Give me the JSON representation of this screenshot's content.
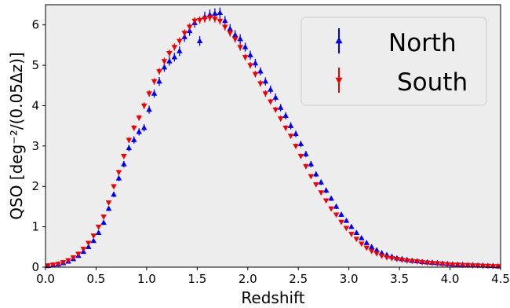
{
  "chart_data": {
    "type": "scatter",
    "xlabel": "Redshift",
    "ylabel": "QSO [deg⁻²/(0.05Δz)]",
    "xlim": [
      0.0,
      4.5
    ],
    "ylim": [
      0.0,
      6.5
    ],
    "xticks": [
      "0.0",
      "0.5",
      "1.0",
      "1.5",
      "2.0",
      "2.5",
      "3.0",
      "3.5",
      "4.0",
      "4.5"
    ],
    "yticks": [
      "0",
      "1",
      "2",
      "3",
      "4",
      "5",
      "6"
    ],
    "grid": false,
    "legend_position": "top-right",
    "background_color": "#ededed",
    "series": [
      {
        "name": "North",
        "marker": "triangle-up",
        "color": "#0000ee",
        "x": [
          0.025,
          0.075,
          0.125,
          0.175,
          0.225,
          0.275,
          0.325,
          0.375,
          0.425,
          0.475,
          0.525,
          0.575,
          0.625,
          0.675,
          0.725,
          0.775,
          0.825,
          0.875,
          0.925,
          0.975,
          1.025,
          1.075,
          1.125,
          1.175,
          1.225,
          1.275,
          1.325,
          1.375,
          1.425,
          1.475,
          1.525,
          1.575,
          1.625,
          1.675,
          1.725,
          1.775,
          1.825,
          1.875,
          1.925,
          1.975,
          2.025,
          2.075,
          2.125,
          2.175,
          2.225,
          2.275,
          2.325,
          2.375,
          2.425,
          2.475,
          2.525,
          2.575,
          2.625,
          2.675,
          2.725,
          2.775,
          2.825,
          2.875,
          2.925,
          2.975,
          3.025,
          3.075,
          3.125,
          3.175,
          3.225,
          3.275,
          3.325,
          3.375,
          3.425,
          3.475,
          3.525,
          3.575,
          3.625,
          3.675,
          3.725,
          3.775,
          3.825,
          3.875,
          3.925,
          3.975,
          4.025,
          4.075,
          4.125,
          4.175,
          4.225,
          4.275,
          4.325,
          4.375,
          4.425,
          4.475
        ],
        "y": [
          0.03,
          0.05,
          0.07,
          0.1,
          0.14,
          0.2,
          0.28,
          0.38,
          0.5,
          0.65,
          0.85,
          1.1,
          1.45,
          1.8,
          2.2,
          2.55,
          2.95,
          3.15,
          3.35,
          3.45,
          3.9,
          4.3,
          4.6,
          4.95,
          5.1,
          5.2,
          5.35,
          5.7,
          5.85,
          6.05,
          5.6,
          6.2,
          6.25,
          6.28,
          6.3,
          6.1,
          5.9,
          5.75,
          5.65,
          5.45,
          5.25,
          5.05,
          4.85,
          4.6,
          4.4,
          4.2,
          3.95,
          3.75,
          3.5,
          3.3,
          3.05,
          2.8,
          2.55,
          2.3,
          2.1,
          1.9,
          1.7,
          1.5,
          1.3,
          1.15,
          1.0,
          0.85,
          0.72,
          0.6,
          0.5,
          0.42,
          0.35,
          0.3,
          0.26,
          0.22,
          0.2,
          0.18,
          0.16,
          0.15,
          0.13,
          0.12,
          0.11,
          0.1,
          0.09,
          0.08,
          0.07,
          0.06,
          0.06,
          0.05,
          0.05,
          0.04,
          0.04,
          0.03,
          0.03,
          0.02
        ],
        "yerr": [
          0.02,
          0.02,
          0.02,
          0.02,
          0.03,
          0.03,
          0.03,
          0.04,
          0.04,
          0.05,
          0.05,
          0.06,
          0.06,
          0.07,
          0.07,
          0.08,
          0.08,
          0.09,
          0.09,
          0.09,
          0.1,
          0.1,
          0.11,
          0.11,
          0.11,
          0.11,
          0.12,
          0.12,
          0.12,
          0.12,
          0.12,
          0.13,
          0.13,
          0.13,
          0.13,
          0.12,
          0.12,
          0.12,
          0.12,
          0.11,
          0.11,
          0.11,
          0.1,
          0.1,
          0.1,
          0.1,
          0.09,
          0.09,
          0.09,
          0.08,
          0.08,
          0.08,
          0.08,
          0.07,
          0.07,
          0.07,
          0.06,
          0.06,
          0.06,
          0.05,
          0.05,
          0.05,
          0.04,
          0.04,
          0.04,
          0.03,
          0.03,
          0.03,
          0.03,
          0.03,
          0.02,
          0.02,
          0.02,
          0.02,
          0.02,
          0.02,
          0.02,
          0.02,
          0.02,
          0.02,
          0.02,
          0.02,
          0.02,
          0.02,
          0.02,
          0.02,
          0.02,
          0.02,
          0.02,
          0.02
        ]
      },
      {
        "name": "South",
        "marker": "triangle-down",
        "color": "#ee0000",
        "x": [
          0.025,
          0.075,
          0.125,
          0.175,
          0.225,
          0.275,
          0.325,
          0.375,
          0.425,
          0.475,
          0.525,
          0.575,
          0.625,
          0.675,
          0.725,
          0.775,
          0.825,
          0.875,
          0.925,
          0.975,
          1.025,
          1.075,
          1.125,
          1.175,
          1.225,
          1.275,
          1.325,
          1.375,
          1.425,
          1.475,
          1.525,
          1.575,
          1.625,
          1.675,
          1.725,
          1.775,
          1.825,
          1.875,
          1.925,
          1.975,
          2.025,
          2.075,
          2.125,
          2.175,
          2.225,
          2.275,
          2.325,
          2.375,
          2.425,
          2.475,
          2.525,
          2.575,
          2.625,
          2.675,
          2.725,
          2.775,
          2.825,
          2.875,
          2.925,
          2.975,
          3.025,
          3.075,
          3.125,
          3.175,
          3.225,
          3.275,
          3.325,
          3.375,
          3.425,
          3.475,
          3.525,
          3.575,
          3.625,
          3.675,
          3.725,
          3.775,
          3.825,
          3.875,
          3.925,
          3.975,
          4.025,
          4.075,
          4.125,
          4.175,
          4.225,
          4.275,
          4.325,
          4.375,
          4.425,
          4.475
        ],
        "y": [
          0.04,
          0.06,
          0.08,
          0.12,
          0.17,
          0.24,
          0.33,
          0.45,
          0.6,
          0.78,
          1.0,
          1.25,
          1.6,
          2.0,
          2.35,
          2.75,
          3.15,
          3.45,
          3.7,
          4.0,
          4.3,
          4.6,
          4.85,
          5.1,
          5.3,
          5.45,
          5.6,
          5.8,
          5.95,
          6.1,
          6.12,
          6.15,
          6.18,
          6.15,
          6.1,
          5.95,
          5.8,
          5.65,
          5.45,
          5.2,
          5.0,
          4.78,
          4.55,
          4.3,
          4.1,
          3.9,
          3.68,
          3.45,
          3.25,
          3.0,
          2.75,
          2.5,
          2.25,
          2.05,
          1.85,
          1.65,
          1.45,
          1.3,
          1.12,
          0.97,
          0.82,
          0.7,
          0.58,
          0.48,
          0.4,
          0.34,
          0.28,
          0.24,
          0.22,
          0.2,
          0.18,
          0.16,
          0.15,
          0.14,
          0.12,
          0.11,
          0.1,
          0.09,
          0.08,
          0.07,
          0.06,
          0.06,
          0.05,
          0.05,
          0.04,
          0.04,
          0.03,
          0.03,
          0.02,
          0.02
        ],
        "yerr": [
          0.02,
          0.02,
          0.02,
          0.02,
          0.02,
          0.03,
          0.03,
          0.03,
          0.04,
          0.04,
          0.05,
          0.05,
          0.05,
          0.06,
          0.06,
          0.06,
          0.07,
          0.07,
          0.07,
          0.08,
          0.08,
          0.08,
          0.08,
          0.09,
          0.09,
          0.09,
          0.09,
          0.09,
          0.09,
          0.09,
          0.09,
          0.09,
          0.09,
          0.09,
          0.09,
          0.09,
          0.09,
          0.09,
          0.09,
          0.08,
          0.08,
          0.08,
          0.08,
          0.08,
          0.07,
          0.07,
          0.07,
          0.07,
          0.06,
          0.06,
          0.06,
          0.06,
          0.05,
          0.05,
          0.05,
          0.05,
          0.04,
          0.04,
          0.04,
          0.04,
          0.03,
          0.03,
          0.03,
          0.03,
          0.03,
          0.02,
          0.02,
          0.02,
          0.02,
          0.02,
          0.02,
          0.02,
          0.02,
          0.02,
          0.02,
          0.02,
          0.02,
          0.02,
          0.02,
          0.02,
          0.02,
          0.02,
          0.02,
          0.02,
          0.02,
          0.02,
          0.02,
          0.02,
          0.02,
          0.02
        ]
      }
    ]
  }
}
